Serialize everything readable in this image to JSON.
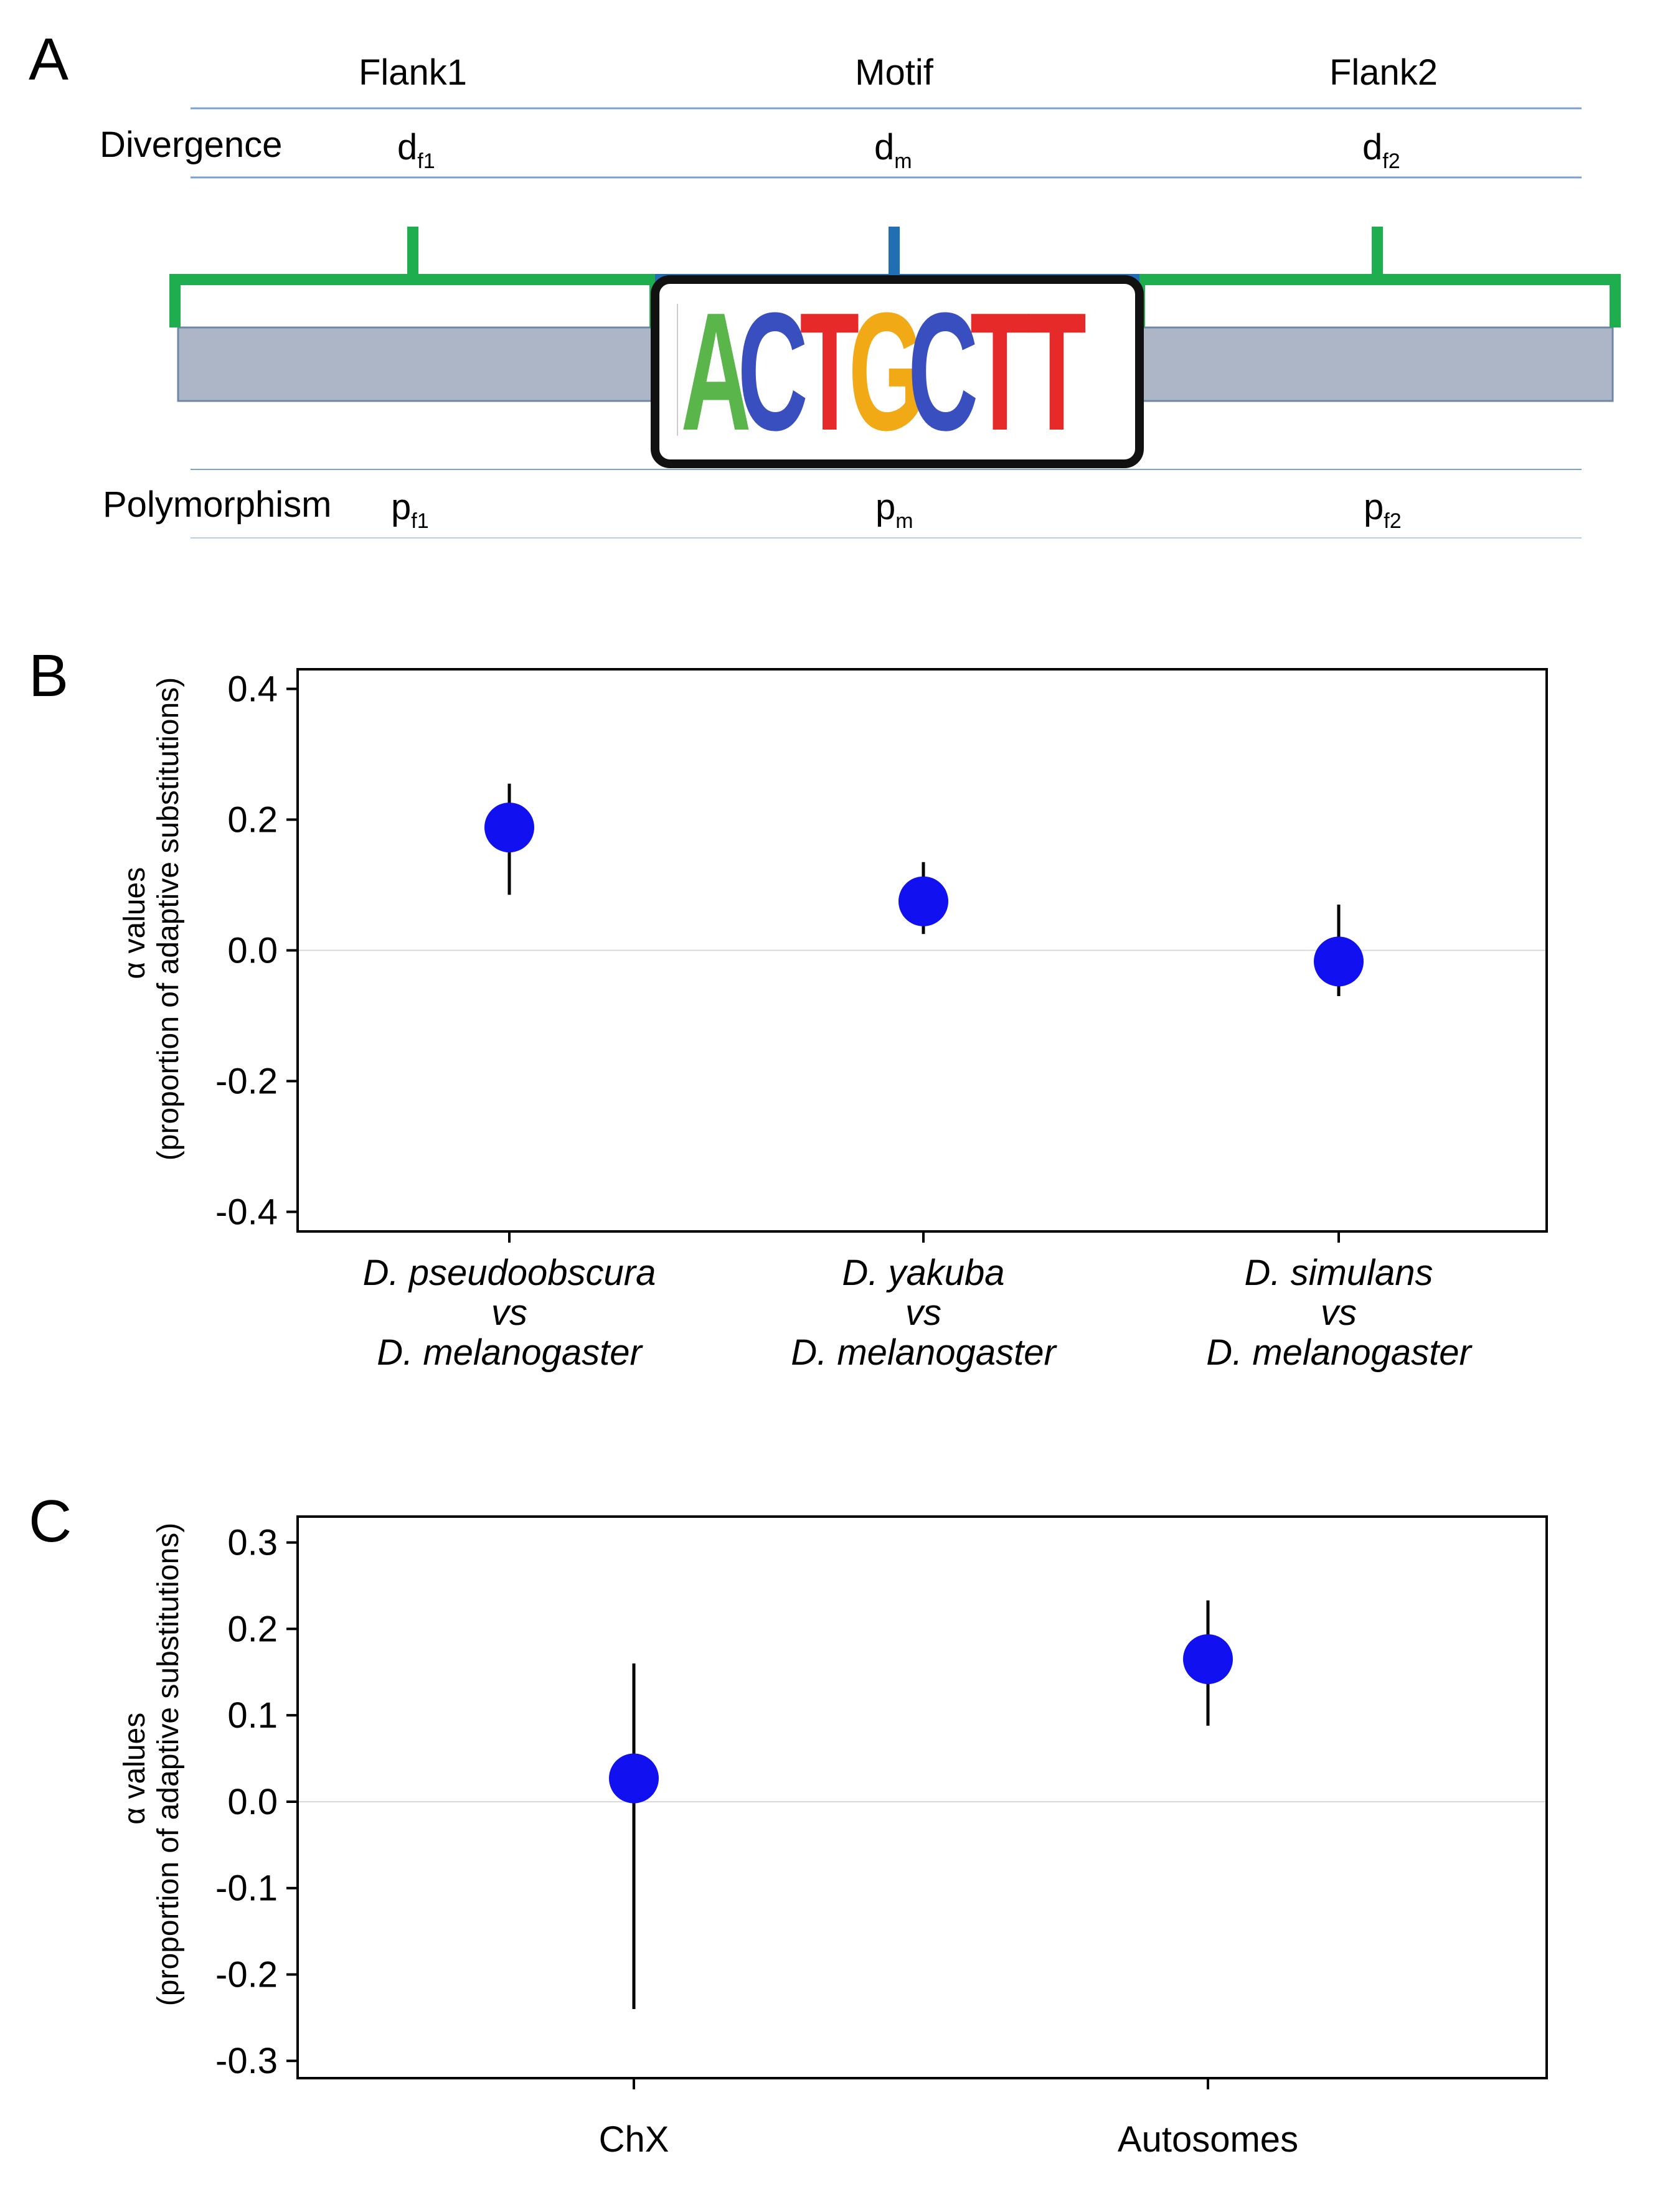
{
  "panel_a": {
    "letter": "A",
    "regions": {
      "flank1": "Flank1",
      "motif": "Motif",
      "flank2": "Flank2"
    },
    "divergence": {
      "label": "Divergence",
      "flank1": {
        "base": "d",
        "sub": "f1"
      },
      "motif": {
        "base": "d",
        "sub": "m"
      },
      "flank2": {
        "base": "d",
        "sub": "f2"
      }
    },
    "polymorphism": {
      "label": "Polymorphism",
      "flank1": {
        "base": "p",
        "sub": "f1"
      },
      "motif": {
        "base": "p",
        "sub": "m"
      },
      "flank2": {
        "base": "p",
        "sub": "f2"
      }
    },
    "logo": {
      "letters": [
        {
          "char": "A",
          "color": "#5ab54a"
        },
        {
          "char": "C",
          "color": "#3a4fbf"
        },
        {
          "char": "T",
          "color": "#e62a2a"
        },
        {
          "char": "G",
          "color": "#f2a916"
        },
        {
          "char": "C",
          "color": "#3a4fbf"
        },
        {
          "char": "T",
          "color": "#e62a2a"
        },
        {
          "char": "T",
          "color": "#e62a2a"
        }
      ]
    },
    "colors": {
      "flank_bracket": "#1fae4f",
      "motif_bracket": "#1f6fb2",
      "bar": "#acb6c7",
      "line": "#7aa2d0"
    }
  },
  "chart_data": [
    {
      "panel": "B",
      "type": "scatter",
      "ylabel_line1": "α values",
      "ylabel_line2": "(proportion of adaptive substitutions)",
      "ylim": [
        -0.43,
        0.43
      ],
      "yticks": [
        0.4,
        0.2,
        0.0,
        -0.2,
        -0.4
      ],
      "ytick_labels": [
        "0.4",
        "0.2",
        "0.0",
        "-0.2",
        "-0.4"
      ],
      "zero_line": true,
      "categories": [
        {
          "line1": "D. pseudoobscura",
          "line2": "vs",
          "line3": "D. melanogaster"
        },
        {
          "line1": "D. yakuba",
          "line2": "vs",
          "line3": "D. melanogaster"
        },
        {
          "line1": "D. simulans",
          "line2": "vs",
          "line3": "D. melanogaster"
        }
      ],
      "values": [
        0.188,
        0.075,
        -0.017
      ],
      "err_low": [
        0.085,
        0.025,
        -0.07
      ],
      "err_high": [
        0.255,
        0.135,
        0.07
      ],
      "marker_color": "#1010f0"
    },
    {
      "panel": "C",
      "type": "scatter",
      "ylabel_line1": "α values",
      "ylabel_line2": "(proportion of adaptive substitutions)",
      "ylim": [
        -0.32,
        0.33
      ],
      "yticks": [
        0.3,
        0.2,
        0.1,
        0.0,
        -0.1,
        -0.2,
        -0.3
      ],
      "ytick_labels": [
        "0.3",
        "0.2",
        "0.1",
        "0.0",
        "-0.1",
        "-0.2",
        "-0.3"
      ],
      "zero_line": true,
      "categories": [
        {
          "line1": "ChX"
        },
        {
          "line1": "Autosomes"
        }
      ],
      "values": [
        0.027,
        0.165
      ],
      "err_low": [
        -0.24,
        0.088
      ],
      "err_high": [
        0.16,
        0.233
      ],
      "marker_color": "#1010f0"
    }
  ]
}
